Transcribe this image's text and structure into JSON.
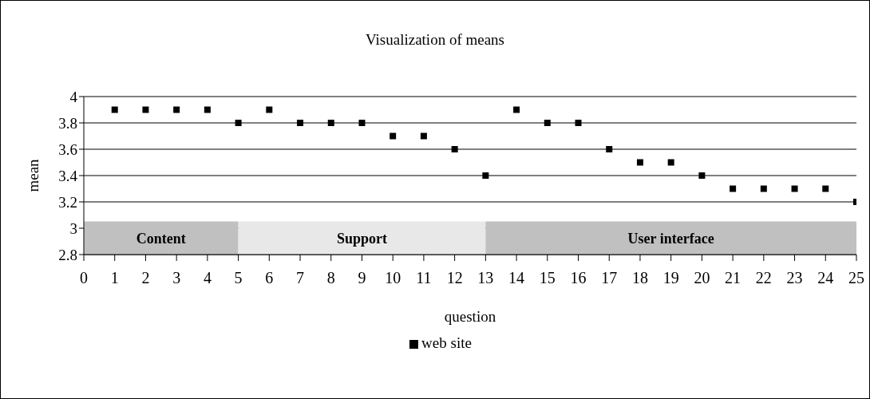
{
  "chart_data": {
    "type": "scatter",
    "title": "Visualization of means",
    "xlabel": "question",
    "ylabel": "mean",
    "x": [
      1,
      2,
      3,
      4,
      5,
      6,
      7,
      8,
      9,
      10,
      11,
      12,
      13,
      14,
      15,
      16,
      17,
      18,
      19,
      20,
      21,
      22,
      23,
      24,
      25
    ],
    "series": [
      {
        "name": "web site",
        "color": "#000000",
        "values": [
          3.9,
          3.9,
          3.9,
          3.9,
          3.8,
          3.9,
          3.8,
          3.8,
          3.8,
          3.7,
          3.7,
          3.6,
          3.4,
          3.9,
          3.8,
          3.8,
          3.6,
          3.5,
          3.5,
          3.4,
          3.3,
          3.3,
          3.3,
          3.3,
          3.2
        ]
      }
    ],
    "xlim": [
      0,
      25
    ],
    "xticks": [
      0,
      1,
      2,
      3,
      4,
      5,
      6,
      7,
      8,
      9,
      10,
      11,
      12,
      13,
      14,
      15,
      16,
      17,
      18,
      19,
      20,
      21,
      22,
      23,
      24,
      25
    ],
    "ylim": [
      2.8,
      4
    ],
    "yticks": [
      2.8,
      3,
      3.2,
      3.4,
      3.6,
      3.8,
      4
    ],
    "bands": [
      {
        "axis": "x",
        "from": 0,
        "to": 5,
        "label": "Content",
        "color": "#c0c0c0"
      },
      {
        "axis": "x",
        "from": 5,
        "to": 13,
        "label": "Support",
        "color": "#e8e8e8"
      },
      {
        "axis": "x",
        "from": 13,
        "to": 25,
        "label": "User interface",
        "color": "#c0c0c0"
      }
    ],
    "grid": "y",
    "legend": "bottom",
    "marker": "square"
  }
}
